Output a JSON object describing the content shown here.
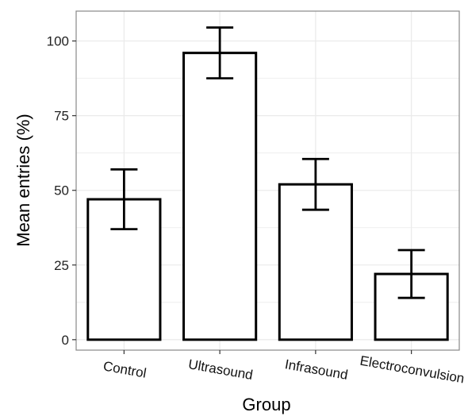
{
  "chart_data": {
    "type": "bar",
    "categories": [
      "Control",
      "Ultrasound",
      "Infrasound",
      "Electroconvulsion"
    ],
    "values": [
      47,
      96,
      52,
      22
    ],
    "error_bars": {
      "lower": [
        37,
        87.5,
        43.5,
        14
      ],
      "upper": [
        57,
        104.5,
        60.5,
        30
      ]
    },
    "xlabel": "Group",
    "ylabel": "Mean entries (%)",
    "ylim": [
      -3.5,
      110
    ],
    "yticks": [
      0,
      25,
      50,
      75,
      100
    ],
    "grid": true,
    "x_tick_rotation_deg": 10,
    "colors": {
      "bar_fill": "#ffffff",
      "bar_stroke": "#000000",
      "grid": "#ebebeb",
      "panel_border": "#888888"
    }
  }
}
